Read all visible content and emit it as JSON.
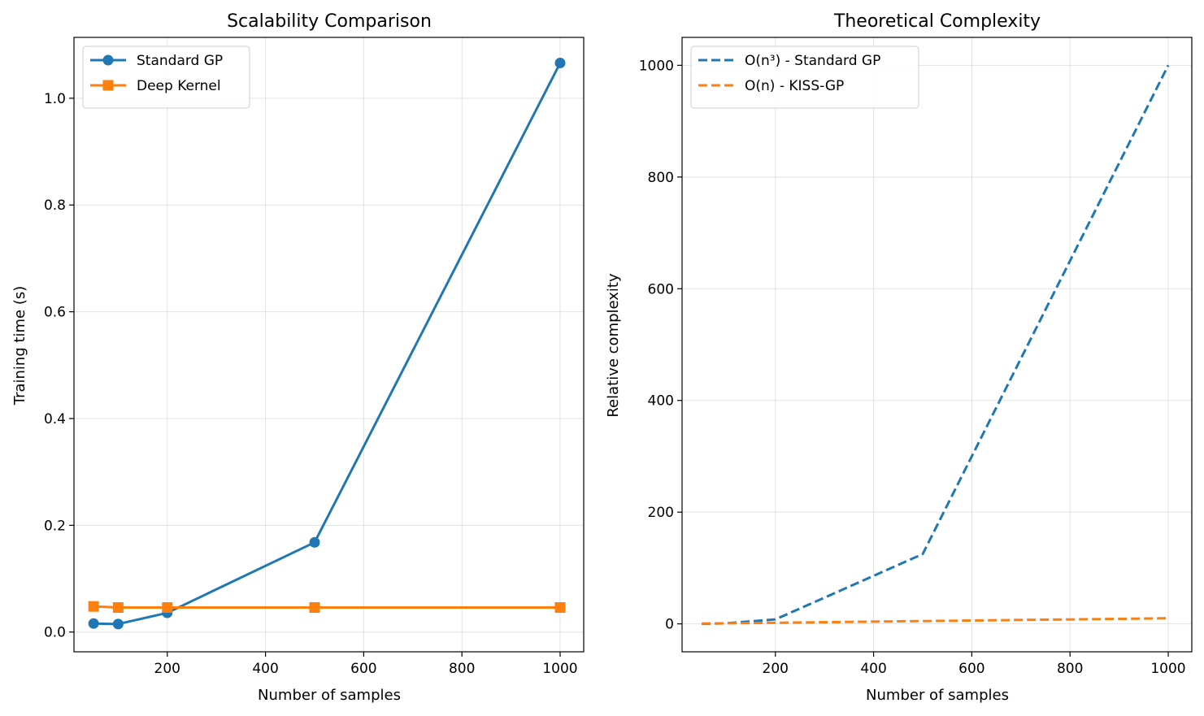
{
  "chart_data": [
    {
      "type": "line",
      "title": "Scalability Comparison",
      "xlabel": "Number of samples",
      "ylabel": "Training time (s)",
      "xlim": [
        10,
        1048
      ],
      "ylim": [
        -0.037,
        1.114
      ],
      "xticks": [
        200,
        400,
        600,
        800,
        1000
      ],
      "xtick_labels": [
        "200",
        "400",
        "600",
        "800",
        "1000"
      ],
      "yticks": [
        0.0,
        0.2,
        0.4,
        0.6,
        0.8,
        1.0
      ],
      "ytick_labels": [
        "0.0",
        "0.2",
        "0.4",
        "0.6",
        "0.8",
        "1.0"
      ],
      "grid": true,
      "legend": "top-left",
      "series": [
        {
          "name": "Standard GP",
          "color": "#1f77b4",
          "marker": "circle",
          "dash": "solid",
          "x": [
            50,
            100,
            200,
            500,
            1000
          ],
          "y": [
            0.016,
            0.015,
            0.036,
            0.168,
            1.066
          ]
        },
        {
          "name": "Deep Kernel",
          "color": "#ff7f0e",
          "marker": "square",
          "dash": "solid",
          "x": [
            50,
            100,
            200,
            500,
            1000
          ],
          "y": [
            0.048,
            0.046,
            0.046,
            0.046,
            0.046
          ]
        }
      ]
    },
    {
      "type": "line",
      "title": "Theoretical Complexity",
      "xlabel": "Number of samples",
      "ylabel": "Relative complexity",
      "xlim": [
        10,
        1048
      ],
      "ylim": [
        -50,
        1050
      ],
      "xticks": [
        200,
        400,
        600,
        800,
        1000
      ],
      "xtick_labels": [
        "200",
        "400",
        "600",
        "800",
        "1000"
      ],
      "yticks": [
        0,
        200,
        400,
        600,
        800,
        1000
      ],
      "ytick_labels": [
        "0",
        "200",
        "400",
        "600",
        "800",
        "1000"
      ],
      "grid": true,
      "legend": "top-left",
      "series": [
        {
          "name": "O(n³) - Standard GP",
          "color": "#1f77b4",
          "marker": "none",
          "dash": "dashed",
          "x": [
            50,
            100,
            200,
            500,
            1000
          ],
          "y": [
            0.125,
            1,
            8,
            125,
            1000
          ]
        },
        {
          "name": "O(n) - KISS-GP",
          "color": "#ff7f0e",
          "marker": "none",
          "dash": "dashed",
          "x": [
            50,
            100,
            200,
            500,
            1000
          ],
          "y": [
            0.5,
            1,
            2,
            5,
            10
          ]
        }
      ]
    }
  ]
}
